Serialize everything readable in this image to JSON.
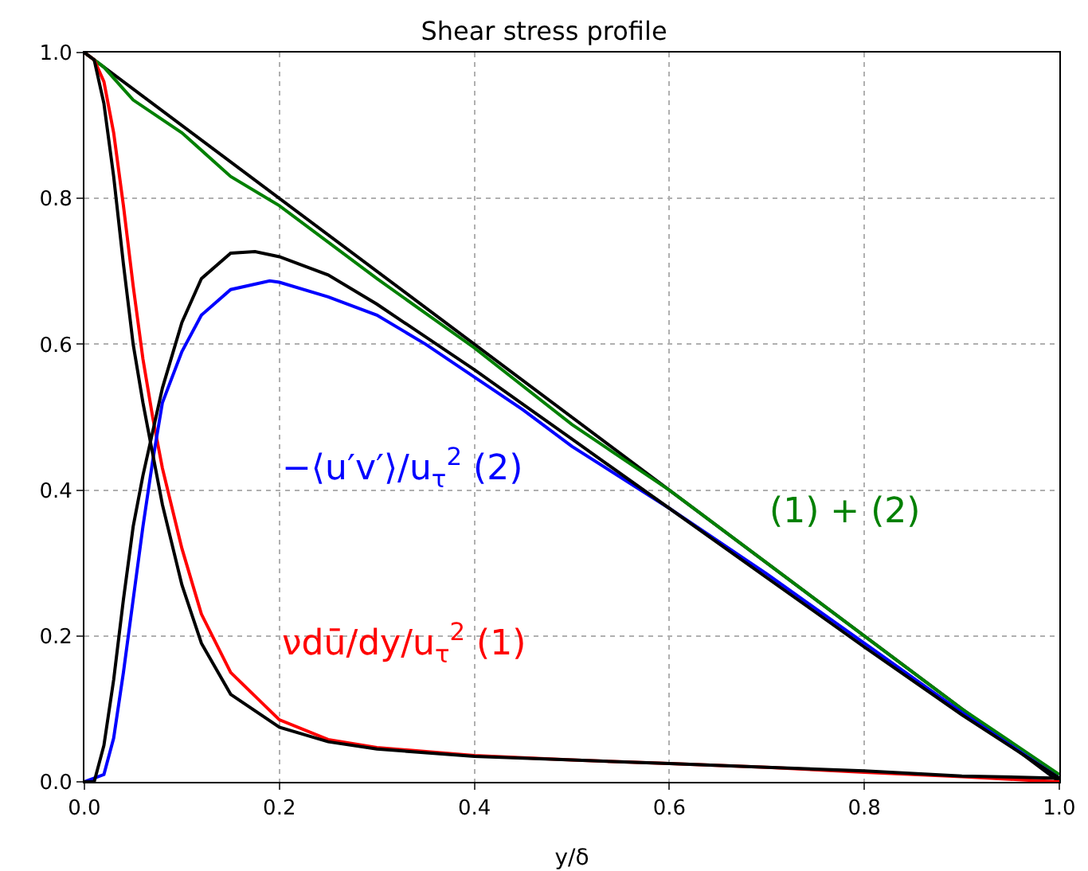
{
  "chart_data": {
    "type": "line",
    "title": "Shear stress profile",
    "xlabel": "y/δ",
    "xlim": [
      0,
      1
    ],
    "ylim": [
      0,
      1
    ],
    "xticks": [
      {
        "value": 0,
        "label": "0.0"
      },
      0.2,
      0.4,
      0.6,
      0.8,
      {
        "value": 1,
        "label": "1.0"
      }
    ],
    "yticks": [
      {
        "value": 0,
        "label": "0.0"
      },
      0.2,
      0.4,
      0.6,
      0.8,
      {
        "value": 1,
        "label": "1.0"
      }
    ],
    "grid": true,
    "marker": "none",
    "line_style": "solid",
    "series": [
      {
        "color": "#000000",
        "x": [
          0,
          1
        ],
        "values": [
          1,
          0
        ]
      },
      {
        "color": "#008000",
        "x": [
          0,
          0.02,
          0.04,
          0.05,
          0.1,
          0.15,
          0.2,
          0.25,
          0.3,
          0.4,
          0.5,
          0.6,
          0.7,
          0.8,
          0.9,
          1
        ],
        "values": [
          1,
          0.98,
          0.95,
          0.935,
          0.89,
          0.83,
          0.79,
          0.74,
          0.69,
          0.595,
          0.49,
          0.4,
          0.3,
          0.2,
          0.1,
          0.01
        ]
      },
      {
        "color": "#ff0000",
        "x": [
          0,
          0.01,
          0.02,
          0.03,
          0.04,
          0.05,
          0.06,
          0.07,
          0.08,
          0.1,
          0.12,
          0.15,
          0.2,
          0.25,
          0.3,
          0.4,
          0.5,
          0.6,
          0.7,
          0.8,
          0.9,
          1
        ],
        "values": [
          1,
          0.99,
          0.96,
          0.89,
          0.79,
          0.68,
          0.58,
          0.5,
          0.43,
          0.32,
          0.23,
          0.15,
          0.085,
          0.058,
          0.047,
          0.036,
          0.03,
          0.025,
          0.02,
          0.013,
          0.007,
          0
        ]
      },
      {
        "color": "#0000ff",
        "x": [
          0,
          0.02,
          0.03,
          0.04,
          0.05,
          0.06,
          0.07,
          0.08,
          0.1,
          0.12,
          0.15,
          0.19,
          0.2,
          0.25,
          0.3,
          0.35,
          0.4,
          0.45,
          0.5,
          0.6,
          0.7,
          0.8,
          0.9,
          1
        ],
        "values": [
          0,
          0.01,
          0.06,
          0.15,
          0.25,
          0.35,
          0.44,
          0.52,
          0.59,
          0.64,
          0.675,
          0.687,
          0.685,
          0.665,
          0.64,
          0.6,
          0.555,
          0.51,
          0.46,
          0.375,
          0.285,
          0.19,
          0.095,
          0.005
        ]
      },
      {
        "color": "#000000",
        "x": [
          0,
          0.01,
          0.02,
          0.03,
          0.04,
          0.05,
          0.06,
          0.07,
          0.08,
          0.1,
          0.12,
          0.15,
          0.2,
          0.25,
          0.3,
          0.4,
          0.5,
          0.6,
          0.7,
          0.8,
          0.9,
          1
        ],
        "values": [
          1,
          0.99,
          0.93,
          0.83,
          0.71,
          0.6,
          0.52,
          0.45,
          0.38,
          0.27,
          0.19,
          0.12,
          0.075,
          0.055,
          0.045,
          0.035,
          0.03,
          0.025,
          0.02,
          0.015,
          0.008,
          0.005
        ]
      },
      {
        "color": "#000000",
        "x": [
          0,
          0.01,
          0.02,
          0.03,
          0.04,
          0.05,
          0.06,
          0.07,
          0.08,
          0.1,
          0.12,
          0.15,
          0.175,
          0.2,
          0.25,
          0.3,
          0.4,
          0.5,
          0.6,
          0.7,
          0.8,
          0.9,
          1
        ],
        "values": [
          0,
          0,
          0.05,
          0.14,
          0.25,
          0.35,
          0.42,
          0.48,
          0.54,
          0.63,
          0.69,
          0.725,
          0.727,
          0.72,
          0.695,
          0.655,
          0.565,
          0.47,
          0.375,
          0.28,
          0.185,
          0.092,
          0.005
        ]
      }
    ],
    "annotations": [
      "−⟨u′v′⟩/u$_{τ}$$^{2}$ (2)",
      "νdū/dy/u$_{τ}$$^{2}$ (1)",
      "(1) + (2)"
    ]
  }
}
